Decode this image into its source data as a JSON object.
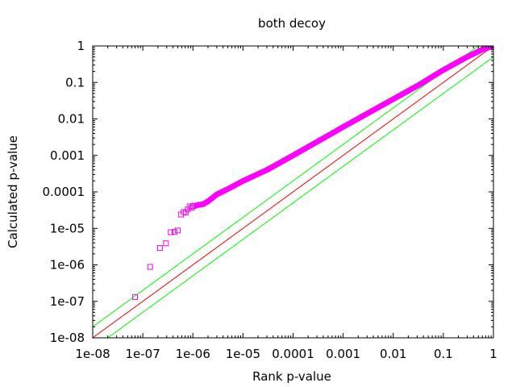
{
  "chart_data": {
    "type": "scatter",
    "title": "both decoy",
    "xlabel": "Rank p-value",
    "ylabel": "Calculated p-value",
    "xscale": "log",
    "yscale": "log",
    "xlim": [
      1e-08,
      1
    ],
    "ylim": [
      1e-08,
      1
    ],
    "x_ticks": [
      "1e-08",
      "1e-07",
      "1e-06",
      "1e-05",
      "0.0001",
      "0.001",
      "0.01",
      "0.1",
      "1"
    ],
    "y_ticks": [
      "1e-08",
      "1e-07",
      "1e-06",
      "1e-05",
      "0.0001",
      "0.001",
      "0.01",
      "0.1",
      "1"
    ],
    "grid": false,
    "marker": "open-square",
    "colors": {
      "points": "#ff00ff",
      "diagonal": "#ff0000",
      "bounds": "#00ff00"
    },
    "reference_lines": [
      {
        "color": "#00ff00",
        "points": [
          [
            1e-08,
            2e-08
          ],
          [
            1,
            2
          ]
        ]
      },
      {
        "color": "#ff0000",
        "points": [
          [
            1e-08,
            1e-08
          ],
          [
            1,
            1
          ]
        ]
      },
      {
        "color": "#00ff00",
        "points": [
          [
            1e-08,
            5e-09
          ],
          [
            1,
            0.5
          ]
        ]
      }
    ],
    "scatter_points": [
      [
        7e-08,
        1.3e-07
      ],
      [
        1.4e-07,
        8.8e-07
      ],
      [
        2.2e-07,
        2.9e-06
      ],
      [
        2.9e-07,
        3.9e-06
      ],
      [
        3.6e-07,
        7.8e-06
      ],
      [
        4.3e-07,
        8e-06
      ],
      [
        5e-07,
        8.8e-06
      ],
      [
        5.8e-07,
        2.4e-05
      ],
      [
        6.5e-07,
        2.8e-05
      ],
      [
        7.2e-07,
        2.7e-05
      ],
      [
        7.9e-07,
        3.3e-05
      ],
      [
        8.6e-07,
        4e-05
      ],
      [
        9.4e-07,
        3.7e-05
      ],
      [
        1.01e-06,
        4.1e-05
      ],
      [
        1.08e-06,
        4.2e-05
      ]
    ],
    "dense_curve": [
      [
        1.2e-06,
        4.3e-05
      ],
      [
        1.6e-06,
        4.6e-05
      ],
      [
        2e-06,
        5.5e-05
      ],
      [
        3e-06,
        8.5e-05
      ],
      [
        5e-06,
        0.00012
      ],
      [
        1e-05,
        0.0002
      ],
      [
        3e-05,
        0.0004
      ],
      [
        0.0001,
        0.001
      ],
      [
        0.001,
        0.006
      ],
      [
        0.01,
        0.035
      ],
      [
        0.03,
        0.08
      ],
      [
        0.1,
        0.22
      ],
      [
        0.3,
        0.5
      ],
      [
        0.6,
        0.8
      ],
      [
        1.0,
        1.0
      ]
    ]
  }
}
